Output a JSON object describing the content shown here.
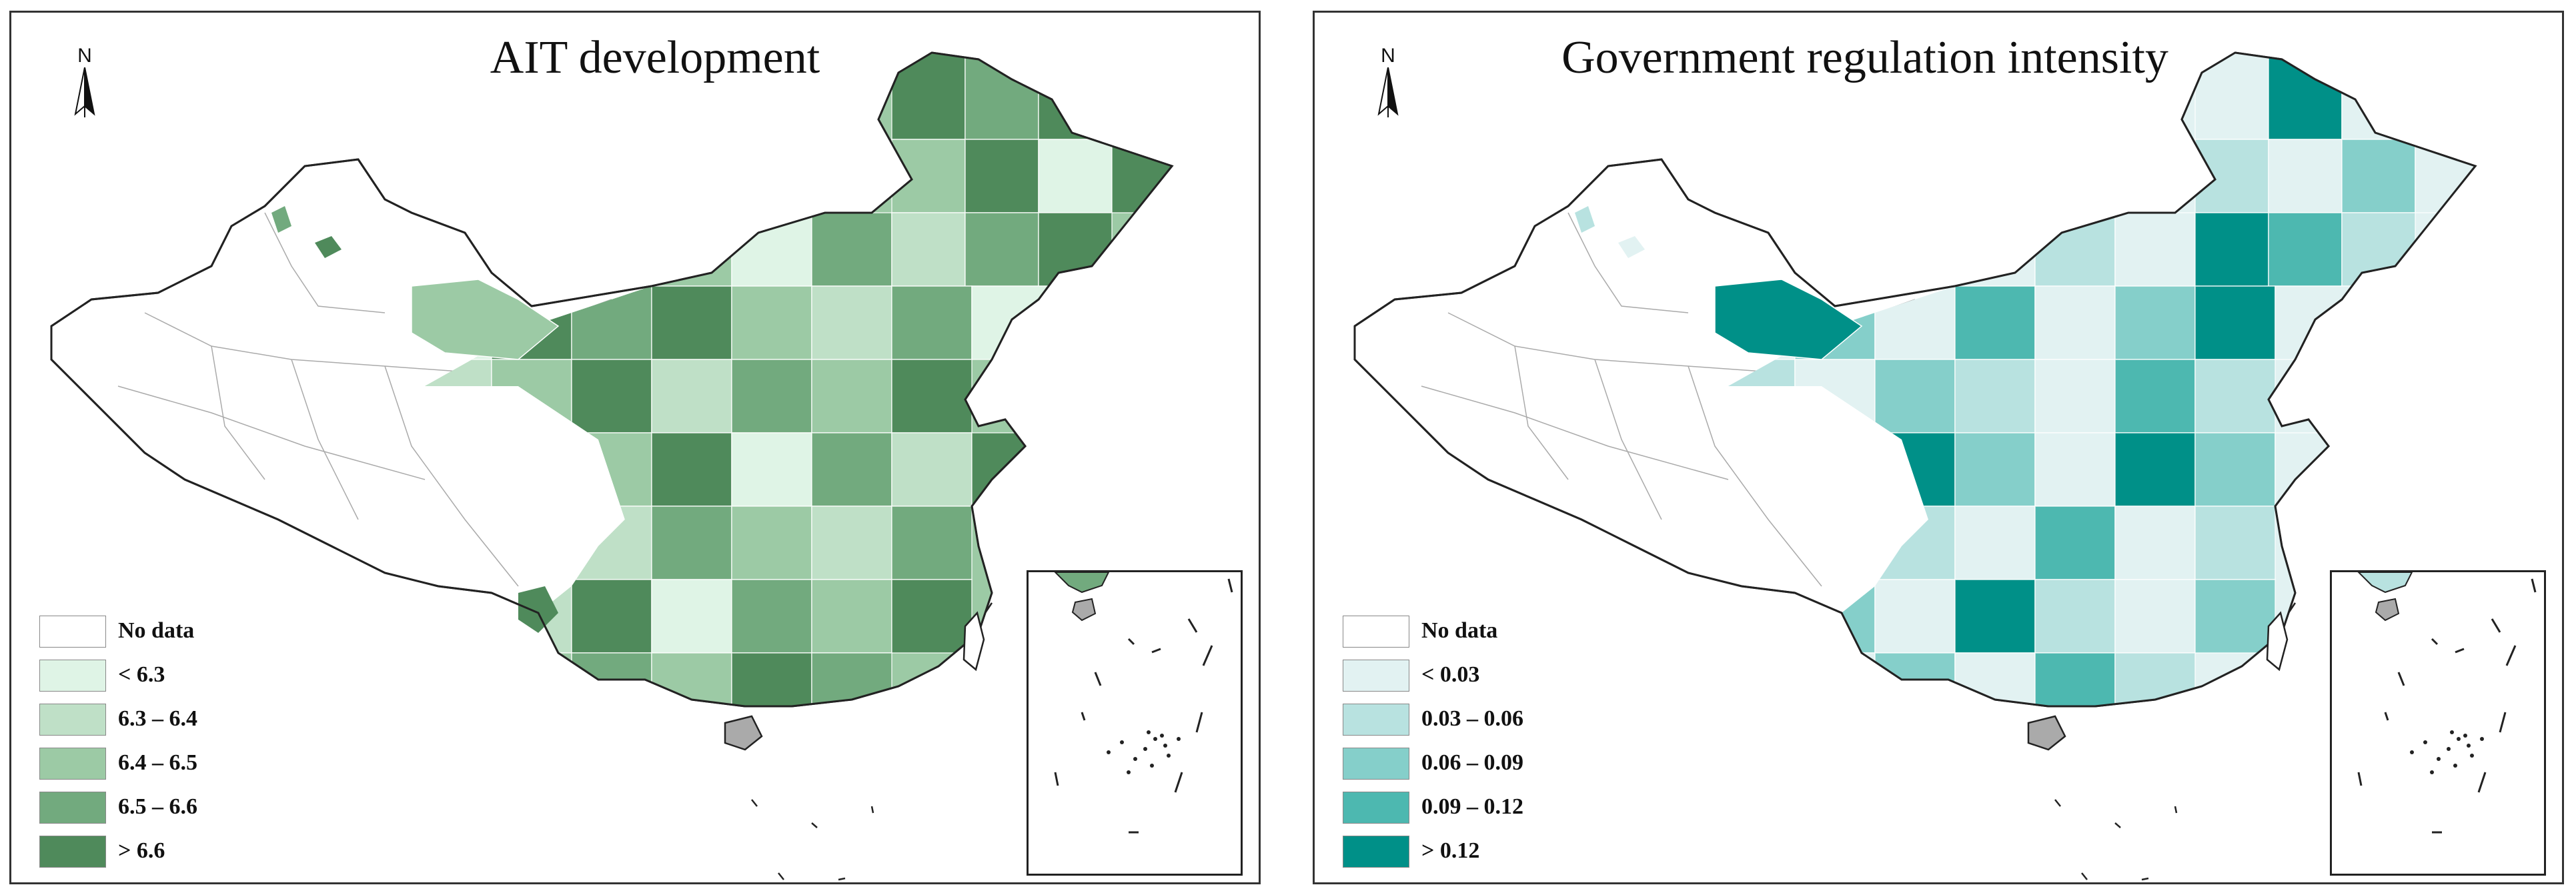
{
  "left_map": {
    "title": "AIT development",
    "north_label": "N",
    "legend": [
      {
        "label": "No data",
        "color": "#ffffff"
      },
      {
        "label": "< 6.3",
        "color": "#dff4e6"
      },
      {
        "label": "6.3 – 6.4",
        "color": "#bfe0c7"
      },
      {
        "label": "6.4 – 6.5",
        "color": "#9ccaa5"
      },
      {
        "label": "6.5 – 6.6",
        "color": "#72aa7e"
      },
      {
        "label": "> 6.6",
        "color": "#4f8a5b"
      }
    ]
  },
  "right_map": {
    "title": "Government regulation intensity",
    "north_label": "N",
    "legend": [
      {
        "label": "No data",
        "color": "#ffffff"
      },
      {
        "label": "< 0.03",
        "color": "#e2f2f2"
      },
      {
        "label": "0.03 – 0.06",
        "color": "#b8e2e0"
      },
      {
        "label": "0.06 – 0.09",
        "color": "#85cfca"
      },
      {
        "label": "0.09 – 0.12",
        "color": "#4db8b0"
      },
      {
        "label": "> 0.12",
        "color": "#009088"
      }
    ]
  }
}
